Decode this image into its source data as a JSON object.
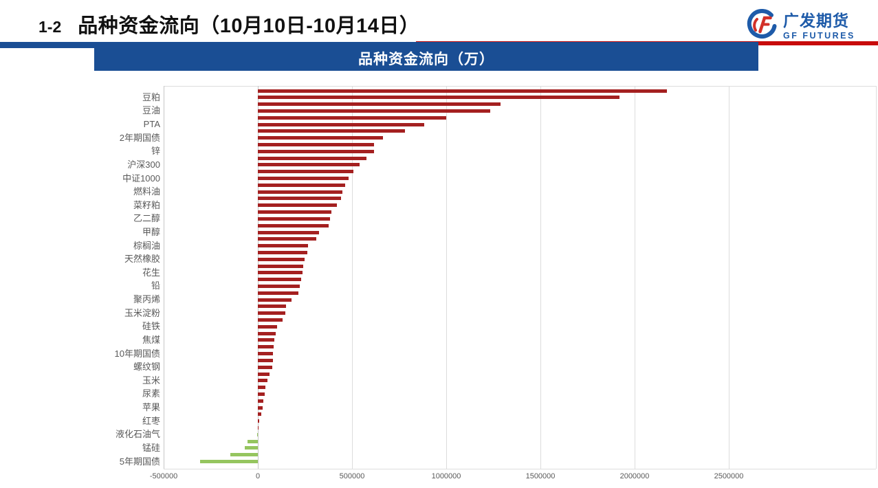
{
  "slide": {
    "title_index": "1-2",
    "title": "品种资金流向（10月10日-10月14日）",
    "accent_blue": "#1A4E94",
    "accent_red": "#C80B0B"
  },
  "logo": {
    "name_cn": "广发期货",
    "name_en": "GF FUTURES",
    "blue": "#1E5BA9",
    "red": "#D23028"
  },
  "chart_header": {
    "title": "品种资金流向（万）"
  },
  "chart_data": {
    "type": "bar",
    "orientation": "horizontal",
    "title": "品种资金流向（万）",
    "xlabel": "",
    "ylabel": "",
    "xlim": [
      -500000,
      3280000
    ],
    "x_ticks": [
      -500000,
      0,
      500000,
      1000000,
      1500000,
      2000000,
      2500000
    ],
    "x_tick_labels": [
      "-500000",
      "0",
      "500000",
      "1000000",
      "1500000",
      "2000000",
      "2500000"
    ],
    "grid": "vertical",
    "legend": "none",
    "positive_color": "#A42020",
    "negative_color": "#95C55F",
    "axis_text_color": "#595959",
    "rows": [
      {
        "label": "",
        "value": 2170000
      },
      {
        "label": "豆粕",
        "value": 1920000
      },
      {
        "label": "",
        "value": 1290000
      },
      {
        "label": "豆油",
        "value": 1235000
      },
      {
        "label": "",
        "value": 1000000
      },
      {
        "label": "PTA",
        "value": 885000
      },
      {
        "label": "",
        "value": 780000
      },
      {
        "label": "2年期国债",
        "value": 663000
      },
      {
        "label": "",
        "value": 618000
      },
      {
        "label": "锌",
        "value": 615000
      },
      {
        "label": "",
        "value": 578000
      },
      {
        "label": "沪深300",
        "value": 539000
      },
      {
        "label": "",
        "value": 507000
      },
      {
        "label": "中证1000",
        "value": 480000
      },
      {
        "label": "",
        "value": 462000
      },
      {
        "label": "燃料油",
        "value": 450000
      },
      {
        "label": "",
        "value": 441000
      },
      {
        "label": "菜籽粕",
        "value": 420000
      },
      {
        "label": "",
        "value": 392000
      },
      {
        "label": "乙二醇",
        "value": 383000
      },
      {
        "label": "",
        "value": 375000
      },
      {
        "label": "甲醇",
        "value": 326000
      },
      {
        "label": "",
        "value": 310000
      },
      {
        "label": "棕榈油",
        "value": 268000
      },
      {
        "label": "",
        "value": 264000
      },
      {
        "label": "天然橡胶",
        "value": 249000
      },
      {
        "label": "",
        "value": 240000
      },
      {
        "label": "花生",
        "value": 237000
      },
      {
        "label": "",
        "value": 231000
      },
      {
        "label": "铅",
        "value": 221000
      },
      {
        "label": "",
        "value": 215000
      },
      {
        "label": "聚丙烯",
        "value": 179000
      },
      {
        "label": "",
        "value": 150000
      },
      {
        "label": "玉米淀粉",
        "value": 146000
      },
      {
        "label": "",
        "value": 131000
      },
      {
        "label": "硅铁",
        "value": 103000
      },
      {
        "label": "",
        "value": 96000
      },
      {
        "label": "焦煤",
        "value": 88000
      },
      {
        "label": "",
        "value": 83000
      },
      {
        "label": "10年期国债",
        "value": 81000
      },
      {
        "label": "",
        "value": 79000
      },
      {
        "label": "螺纹钢",
        "value": 75000
      },
      {
        "label": "",
        "value": 61000
      },
      {
        "label": "玉米",
        "value": 51000
      },
      {
        "label": "",
        "value": 41000
      },
      {
        "label": "尿素",
        "value": 36000
      },
      {
        "label": "",
        "value": 30000
      },
      {
        "label": "苹果",
        "value": 24000
      },
      {
        "label": "",
        "value": 18000
      },
      {
        "label": "红枣",
        "value": 6000
      },
      {
        "label": "",
        "value": 1500
      },
      {
        "label": "液化石油气",
        "value": -5000
      },
      {
        "label": "",
        "value": -55000
      },
      {
        "label": "锰硅",
        "value": -68000
      },
      {
        "label": "",
        "value": -145000
      },
      {
        "label": "5年期国债",
        "value": -305000
      }
    ]
  }
}
